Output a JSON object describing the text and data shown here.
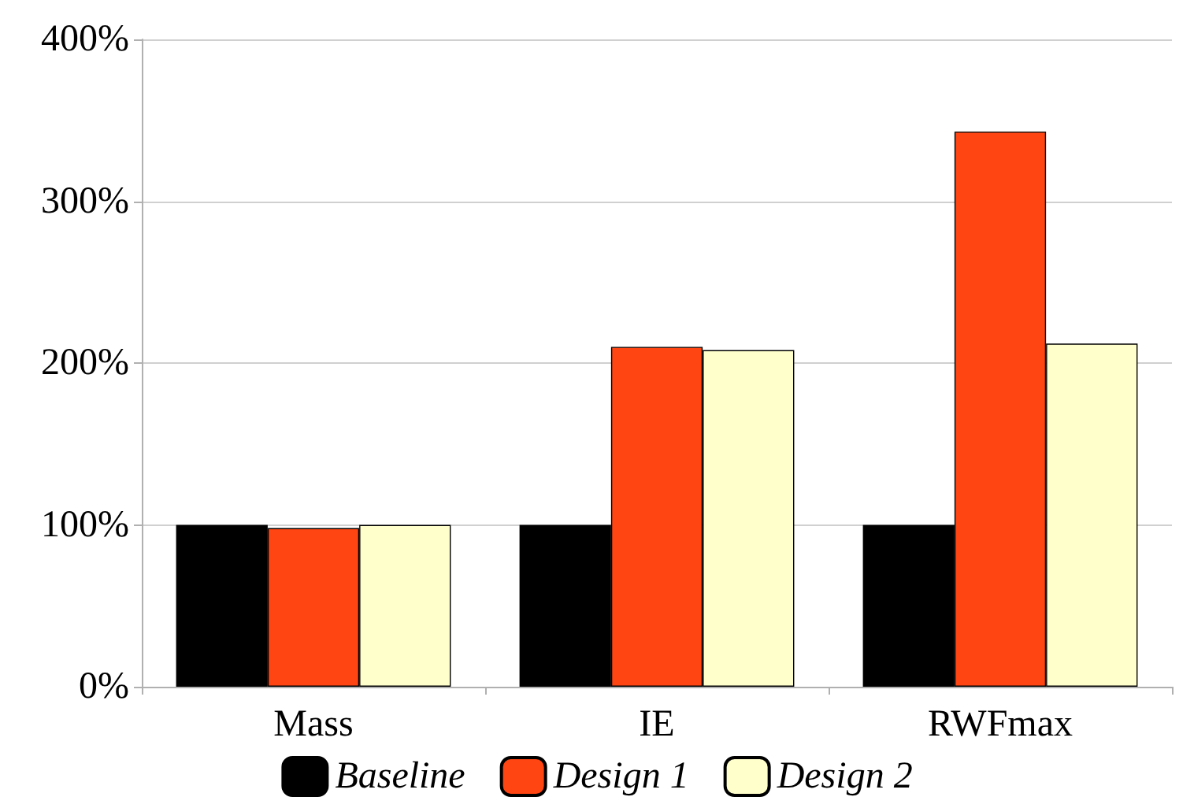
{
  "chart_data": {
    "type": "bar",
    "categories": [
      "Mass",
      "IE",
      "RWFmax"
    ],
    "series": [
      {
        "name": "Baseline",
        "color": "#000000",
        "values": [
          100,
          100,
          100
        ]
      },
      {
        "name": "Design 1",
        "color": "#ff4512",
        "values": [
          98,
          210,
          343
        ]
      },
      {
        "name": "Design 2",
        "color": "#ffffcc",
        "values": [
          100,
          208,
          212
        ]
      }
    ],
    "ylim": [
      0,
      400
    ],
    "yticks": [
      {
        "value": 0,
        "label": "0%"
      },
      {
        "value": 100,
        "label": "100%"
      },
      {
        "value": 200,
        "label": "200%"
      },
      {
        "value": 300,
        "label": "300%"
      },
      {
        "value": 400,
        "label": "400%"
      }
    ],
    "grid": "y",
    "legend": "bottom"
  }
}
